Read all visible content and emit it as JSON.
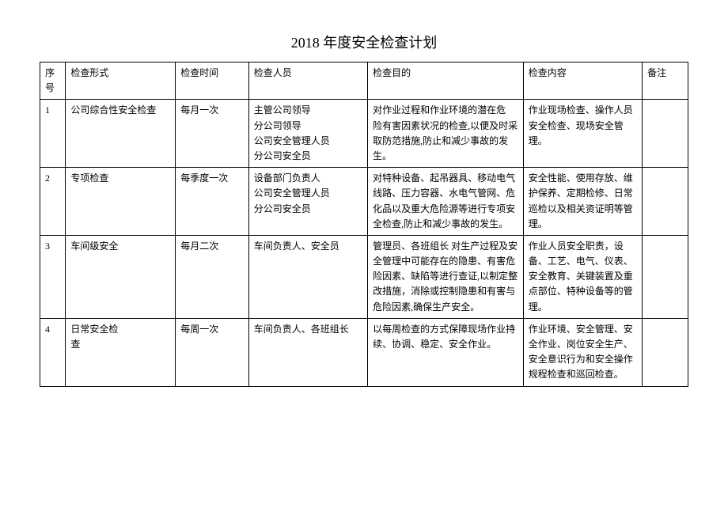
{
  "title": "2018 年度安全检查计划",
  "columns": [
    "序号",
    "检查形式",
    "检查时间",
    "检查人员",
    "检查目的",
    "检查内容",
    "备注"
  ],
  "rows": [
    {
      "idx": "1",
      "type": "公司综合性安全检查",
      "time": "每月一次",
      "person": "主管公司领导\n分公司领导\n公司安全管理人员\n分公司安全员",
      "purpose": "对作业过程和作业环境的潜在危\n险有害因素状况的检查,以便及时采取防范措施,防止和减少事故的发生。",
      "content": "作业现场检查、操作人员安全检查、现场安全管理。",
      "note": ""
    },
    {
      "idx": "2",
      "type": "专项检查",
      "time": "每季度一次",
      "person": "设备部门负责人\n公司安全管理人员\n分公司安全员",
      "purpose": "对特种设备、起吊器具、移动电气线路、压力容器、水电气管网、危\n化品以及重大危险源等进行专项安全检查,防止和减少事故的发生。",
      "content": "安全性能、使用存放、维护保养、定期检修、日常巡检以及相关资证明等管理。",
      "note": ""
    },
    {
      "idx": "3",
      "type": "车间级安全",
      "time": "每月二次",
      "person": "车间负责人、安全员",
      "purpose": "管理员、各班组长 对生产过程及安全管理中可能存在的隐患、有害危险因素、缺陷等进行查证,以制定整改措施，消除或控制隐患和有害与危险因素,确保生产安全。",
      "content": "作业人员安全职责，设备、工艺、电气、仪表、安全教育、关键装置及重点部位、特种设备等的管理。",
      "note": ""
    },
    {
      "idx": "4",
      "type": "日常安全检\n查",
      "time": "每周一次",
      "person": "车间负责人、各班组长",
      "purpose": "以每周检查的方式保障现场作业持续、协调、稳定、安全作业。",
      "content": "作业环境、安全管理、安全作业、岗位安全生产、安全意识行为和安全操作规程检查和巡回检查。",
      "note": ""
    }
  ],
  "style": {
    "title_fontsize": 18,
    "cell_fontsize": 12,
    "border_color": "#000000",
    "background_color": "#ffffff",
    "text_color": "#000000"
  }
}
